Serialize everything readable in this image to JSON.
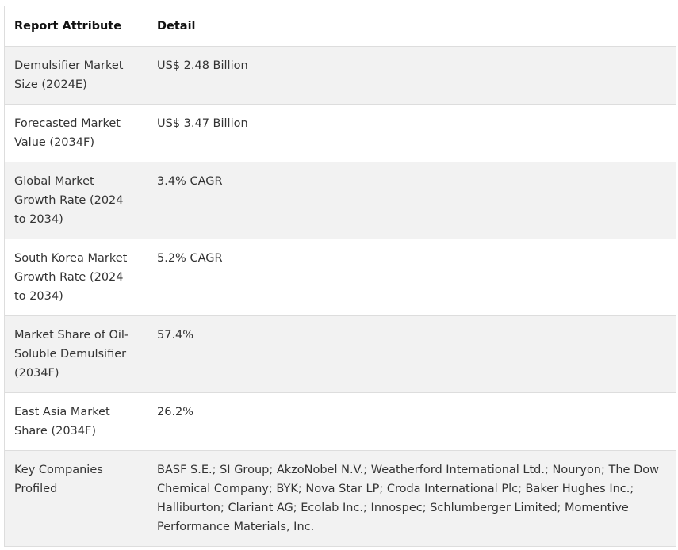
{
  "table": {
    "headers": [
      "Report Attribute",
      "Detail"
    ],
    "rows": [
      {
        "attribute": "Demulsifier Market Size (2024E)",
        "detail": "US$ 2.48 Billion"
      },
      {
        "attribute": "Forecasted Market Value (2034F)",
        "detail": "US$ 3.47 Billion"
      },
      {
        "attribute": "Global Market Growth Rate (2024 to 2034)",
        "detail": "3.4% CAGR"
      },
      {
        "attribute": "South Korea Market Growth Rate (2024 to 2034)",
        "detail": "5.2% CAGR"
      },
      {
        "attribute": "Market Share of Oil-Soluble Demulsifier (2034F)",
        "detail": "57.4%"
      },
      {
        "attribute": "East Asia Market Share (2034F)",
        "detail": "26.2%"
      },
      {
        "attribute": "Key Companies Profiled",
        "detail": "BASF S.E.; SI Group; AkzoNobel N.V.; Weatherford International Ltd.; Nouryon; The Dow Chemical Company; BYK; Nova Star LP; Croda International Plc; Baker Hughes Inc.; Halliburton; Clariant AG; Ecolab Inc.; Innospec; Schlumberger Limited; Momentive Performance Materials, Inc."
      }
    ]
  }
}
